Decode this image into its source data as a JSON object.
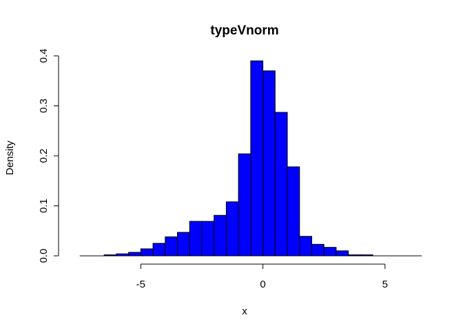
{
  "chart_data": {
    "type": "bar",
    "title": "typeVnorm",
    "xlabel": "x",
    "ylabel": "Density",
    "bar_color": "#0000ff",
    "border_color": "#000000",
    "xlim": [
      -8,
      6.5
    ],
    "ylim": [
      0,
      0.4
    ],
    "x_ticks": [
      -5,
      0,
      5
    ],
    "x_tick_labels": [
      "-5",
      "0",
      "5"
    ],
    "y_ticks": [
      0,
      0.1,
      0.2,
      0.3,
      0.4
    ],
    "y_tick_labels": [
      "0.0",
      "0.1",
      "0.2",
      "0.3",
      "0.4"
    ],
    "bin_width": 0.5,
    "bins": [
      {
        "x0": -7.5,
        "x1": -7.0,
        "density": 0.0
      },
      {
        "x0": -7.0,
        "x1": -6.5,
        "density": 0.0
      },
      {
        "x0": -6.5,
        "x1": -6.0,
        "density": 0.002
      },
      {
        "x0": -6.0,
        "x1": -5.5,
        "density": 0.004
      },
      {
        "x0": -5.5,
        "x1": -5.0,
        "density": 0.007
      },
      {
        "x0": -5.0,
        "x1": -4.5,
        "density": 0.014
      },
      {
        "x0": -4.5,
        "x1": -4.0,
        "density": 0.025
      },
      {
        "x0": -4.0,
        "x1": -3.5,
        "density": 0.038
      },
      {
        "x0": -3.5,
        "x1": -3.0,
        "density": 0.047
      },
      {
        "x0": -3.0,
        "x1": -2.5,
        "density": 0.069
      },
      {
        "x0": -2.5,
        "x1": -2.0,
        "density": 0.069
      },
      {
        "x0": -2.0,
        "x1": -1.5,
        "density": 0.081
      },
      {
        "x0": -1.5,
        "x1": -1.0,
        "density": 0.108
      },
      {
        "x0": -1.0,
        "x1": -0.5,
        "density": 0.204
      },
      {
        "x0": -0.5,
        "x1": 0.0,
        "density": 0.39
      },
      {
        "x0": 0.0,
        "x1": 0.5,
        "density": 0.37
      },
      {
        "x0": 0.5,
        "x1": 1.0,
        "density": 0.287
      },
      {
        "x0": 1.0,
        "x1": 1.5,
        "density": 0.178
      },
      {
        "x0": 1.5,
        "x1": 2.0,
        "density": 0.039
      },
      {
        "x0": 2.0,
        "x1": 2.5,
        "density": 0.023
      },
      {
        "x0": 2.5,
        "x1": 3.0,
        "density": 0.017
      },
      {
        "x0": 3.0,
        "x1": 3.5,
        "density": 0.01
      },
      {
        "x0": 3.5,
        "x1": 4.0,
        "density": 0.002
      },
      {
        "x0": 4.0,
        "x1": 4.5,
        "density": 0.002
      },
      {
        "x0": 4.5,
        "x1": 5.0,
        "density": 0.0
      },
      {
        "x0": 5.0,
        "x1": 5.5,
        "density": 0.0
      },
      {
        "x0": 5.5,
        "x1": 6.0,
        "density": 0.0
      },
      {
        "x0": 6.0,
        "x1": 6.5,
        "density": 0.0
      }
    ]
  }
}
